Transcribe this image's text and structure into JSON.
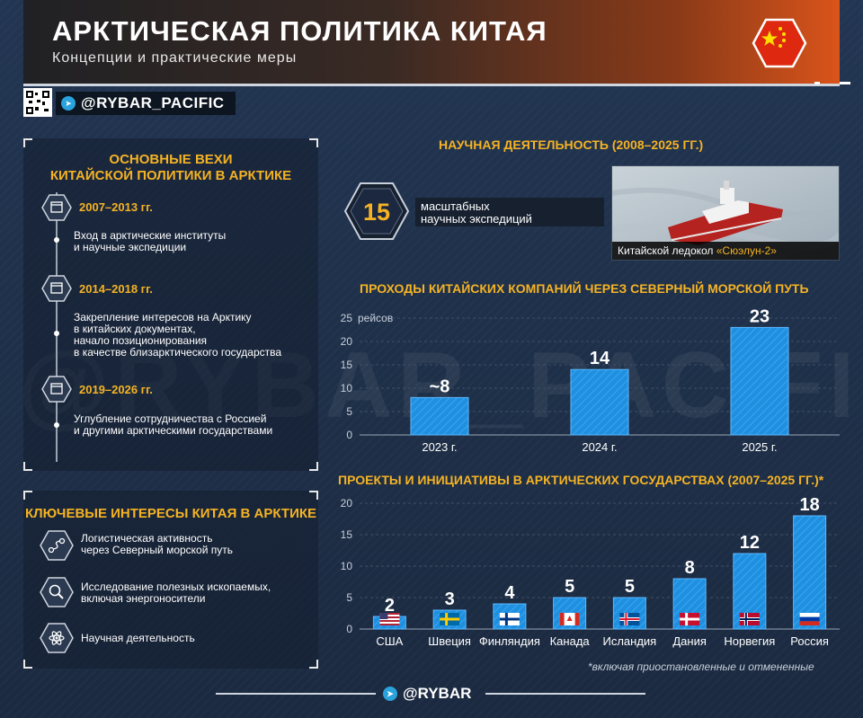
{
  "header": {
    "title": "АРКТИЧЕСКАЯ ПОЛИТИКА КИТАЯ",
    "subtitle": "Концепции и практические меры",
    "flag_icon": "china-flag-icon"
  },
  "handle": {
    "telegram": "@RYBAR_PACIFIC",
    "qr_icon": "qr-code-icon"
  },
  "watermark": "@RYBAR_PACIFIC",
  "milestones": {
    "title_line1": "ОСНОВНЫЕ ВЕХИ",
    "title_line2": "КИТАЙСКОЙ ПОЛИТИКИ В АРКТИКЕ",
    "items": [
      {
        "period": "2007–2013 гг.",
        "lines": [
          "Вход в арктические институты",
          "и научные экспедиции"
        ]
      },
      {
        "period": "2014–2018 гг.",
        "lines": [
          "Закрепление интересов на Арктику",
          "в китайских документах,",
          "начало позиционирования",
          "в качестве близарктического государства"
        ]
      },
      {
        "period": "2019–2026 гг.",
        "lines": [
          "Углубление сотрудничества с Россией",
          "и другими арктическими государствами"
        ]
      }
    ]
  },
  "interests": {
    "title": "КЛЮЧЕВЫЕ ИНТЕРЕСЫ КИТАЯ В АРКТИКЕ",
    "items": [
      {
        "icon": "route-icon",
        "lines": [
          "Логистическая активность",
          "через Северный морской путь"
        ]
      },
      {
        "icon": "magnifier-icon",
        "lines": [
          "Исследование полезных ископаемых,",
          "включая энергоносители"
        ]
      },
      {
        "icon": "atom-icon",
        "lines": [
          "Научная деятельность"
        ]
      }
    ]
  },
  "science": {
    "title": "НАУЧНАЯ ДЕЯТЕЛЬНОСТЬ (2008–2025 ГГ.)",
    "stat_value": "15",
    "stat_lines": [
      "масштабных",
      "научных экспедиций"
    ],
    "photo_caption_prefix": "Китайской ледокол ",
    "photo_caption_name": "«Сюэлун-2»"
  },
  "colors": {
    "accent": "#f5b324",
    "bar": "#1f8fe0",
    "bar_light": "#3aa6f0"
  },
  "chart_data": [
    {
      "type": "bar",
      "title": "ПРОХОДЫ КИТАЙСКИХ КОМПАНИЙ ЧЕРЕЗ СЕВЕРНЫЙ МОРСКОЙ ПУТЬ",
      "ylabel": "рейсов",
      "categories": [
        "2023 г.",
        "2024 г.",
        "2025 г."
      ],
      "values": [
        8,
        14,
        23
      ],
      "data_labels": [
        "~8",
        "14",
        "23"
      ],
      "yticks": [
        0,
        5,
        10,
        15,
        20,
        25
      ],
      "ylim": [
        0,
        25
      ],
      "grid": true
    },
    {
      "type": "bar",
      "title": "ПРОЕКТЫ И ИНИЦИАТИВЫ В АРКТИЧЕСКИХ ГОСУДАРСТВАХ (2007–2025 ГГ.)*",
      "categories": [
        "США",
        "Швеция",
        "Финляндия",
        "Канада",
        "Исландия",
        "Дания",
        "Норвегия",
        "Россия"
      ],
      "values": [
        2,
        3,
        4,
        5,
        5,
        8,
        12,
        18
      ],
      "data_labels": [
        "2",
        "3",
        "4",
        "5",
        "5",
        "8",
        "12",
        "18"
      ],
      "flag_icons": [
        "usa-flag-icon",
        "sweden-flag-icon",
        "finland-flag-icon",
        "canada-flag-icon",
        "iceland-flag-icon",
        "denmark-flag-icon",
        "norway-flag-icon",
        "russia-flag-icon"
      ],
      "yticks": [
        0,
        5,
        10,
        15,
        20
      ],
      "ylim": [
        0,
        20
      ],
      "grid": true,
      "footnote": "*включая приостановленные и отмененные"
    }
  ],
  "footer": {
    "handle": "@RYBAR"
  }
}
